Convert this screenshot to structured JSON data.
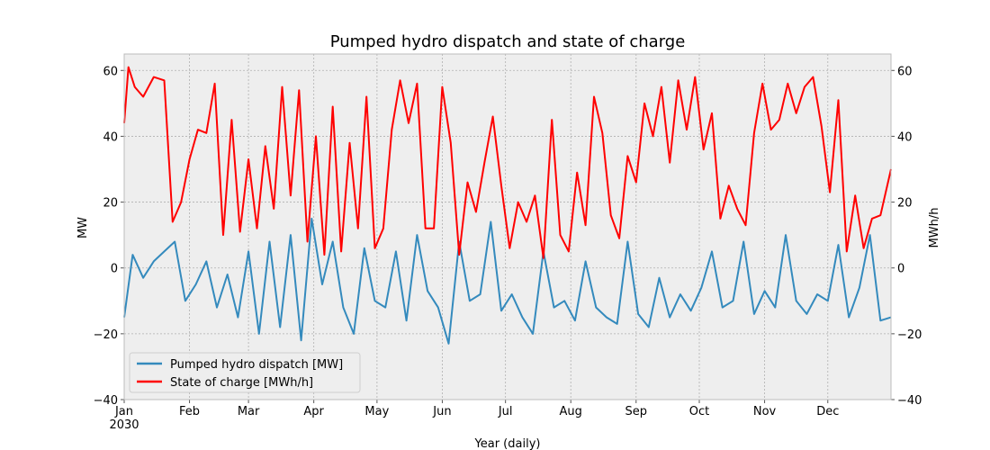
{
  "chart_data": {
    "type": "line",
    "title": "Pumped hydro dispatch and state of charge",
    "xlabel": "Year (daily)",
    "ylabel_left": "MW",
    "ylabel_right": "MWh/h",
    "ylim": [
      -40,
      65
    ],
    "yticks": [
      -40,
      -20,
      0,
      20,
      40,
      60
    ],
    "year_label": "2030",
    "months": [
      "Jan",
      "Feb",
      "Mar",
      "Apr",
      "May",
      "Jun",
      "Jul",
      "Aug",
      "Sep",
      "Oct",
      "Nov",
      "Dec"
    ],
    "x_unit": "day of year 2030",
    "grid": true,
    "legend_position": "lower-left",
    "colors": {
      "dispatch": "#348abd",
      "soc": "#ff0000",
      "background": "#eeeeee",
      "grid": "#b0b0b0"
    },
    "series": [
      {
        "name": "Pumped hydro dispatch [MW]",
        "x": [
          1,
          5,
          10,
          15,
          20,
          25,
          30,
          35,
          40,
          45,
          50,
          55,
          60,
          65,
          70,
          75,
          80,
          85,
          90,
          95,
          100,
          105,
          110,
          115,
          120,
          125,
          130,
          135,
          140,
          145,
          150,
          155,
          160,
          165,
          170,
          175,
          180,
          185,
          190,
          195,
          200,
          205,
          210,
          215,
          220,
          225,
          230,
          235,
          240,
          245,
          250,
          255,
          260,
          265,
          270,
          275,
          280,
          285,
          290,
          295,
          300,
          305,
          310,
          315,
          320,
          325,
          330,
          335,
          340,
          345,
          350,
          355,
          360,
          365
        ],
        "values": [
          -15,
          4,
          -3,
          2,
          5,
          8,
          -10,
          -5,
          2,
          -12,
          -2,
          -15,
          5,
          -20,
          8,
          -18,
          10,
          -22,
          15,
          -5,
          8,
          -12,
          -20,
          6,
          -10,
          -12,
          5,
          -16,
          10,
          -7,
          -12,
          -23,
          8,
          -10,
          -8,
          14,
          -13,
          -8,
          -15,
          -20,
          5,
          -12,
          -10,
          -16,
          2,
          -12,
          -15,
          -17,
          8,
          -14,
          -18,
          -3,
          -15,
          -8,
          -13,
          -6,
          5,
          -12,
          -10,
          8,
          -14,
          -7,
          -12,
          10,
          -10,
          -14,
          -8,
          -10,
          7,
          -15,
          -6,
          10,
          -16,
          -15
        ]
      },
      {
        "name": "State of charge [MWh/h]",
        "x": [
          1,
          3,
          6,
          10,
          15,
          20,
          24,
          28,
          32,
          36,
          40,
          44,
          48,
          52,
          56,
          60,
          64,
          68,
          72,
          76,
          80,
          84,
          88,
          92,
          96,
          100,
          104,
          108,
          112,
          116,
          120,
          124,
          128,
          132,
          136,
          140,
          144,
          148,
          152,
          156,
          160,
          164,
          168,
          172,
          176,
          180,
          184,
          188,
          192,
          196,
          200,
          204,
          208,
          212,
          216,
          220,
          224,
          228,
          232,
          236,
          240,
          244,
          248,
          252,
          256,
          260,
          264,
          268,
          272,
          276,
          280,
          284,
          288,
          292,
          296,
          300,
          304,
          308,
          312,
          316,
          320,
          324,
          328,
          332,
          336,
          340,
          344,
          348,
          352,
          356,
          360,
          365
        ],
        "values": [
          44,
          61,
          55,
          52,
          58,
          57,
          14,
          20,
          33,
          42,
          41,
          56,
          10,
          45,
          11,
          33,
          12,
          37,
          18,
          55,
          22,
          54,
          8,
          40,
          4,
          49,
          5,
          38,
          12,
          52,
          6,
          12,
          42,
          57,
          44,
          56,
          12,
          12,
          55,
          38,
          4,
          26,
          17,
          32,
          46,
          25,
          6,
          20,
          14,
          22,
          3,
          45,
          10,
          5,
          29,
          13,
          52,
          41,
          16,
          9,
          34,
          26,
          50,
          40,
          55,
          32,
          57,
          42,
          58,
          36,
          47,
          15,
          25,
          18,
          13,
          41,
          56,
          42,
          45,
          56,
          47,
          55,
          58,
          43,
          23,
          51,
          5,
          22,
          6,
          15,
          16,
          30
        ]
      }
    ]
  }
}
